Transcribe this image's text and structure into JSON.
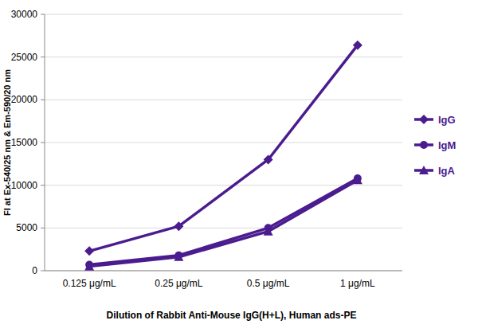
{
  "chart_data": {
    "type": "line",
    "x_label": "Dilution of Rabbit Anti-Mouse IgG(H+L), Human ads-PE",
    "y_label": "FI at Ex-540/25 nm & Em-590/20 nm",
    "categories": [
      "0.125 μg/mL",
      "0.25 μg/mL",
      "0.5 μg/mL",
      "1 μg/mL"
    ],
    "series": [
      {
        "name": "IgG",
        "color": "#4b1c8f",
        "marker": "diamond",
        "values": [
          2300,
          5200,
          13000,
          26400
        ]
      },
      {
        "name": "IgM",
        "color": "#4b1c8f",
        "marker": "circle",
        "values": [
          700,
          1800,
          5000,
          10800
        ]
      },
      {
        "name": "IgA",
        "color": "#4b1c8f",
        "marker": "triangle",
        "values": [
          500,
          1600,
          4600,
          10600
        ]
      }
    ],
    "ylim": [
      0,
      30000
    ],
    "yticks": [
      0,
      5000,
      10000,
      15000,
      20000,
      25000,
      30000
    ],
    "grid": true,
    "legend": "right"
  }
}
